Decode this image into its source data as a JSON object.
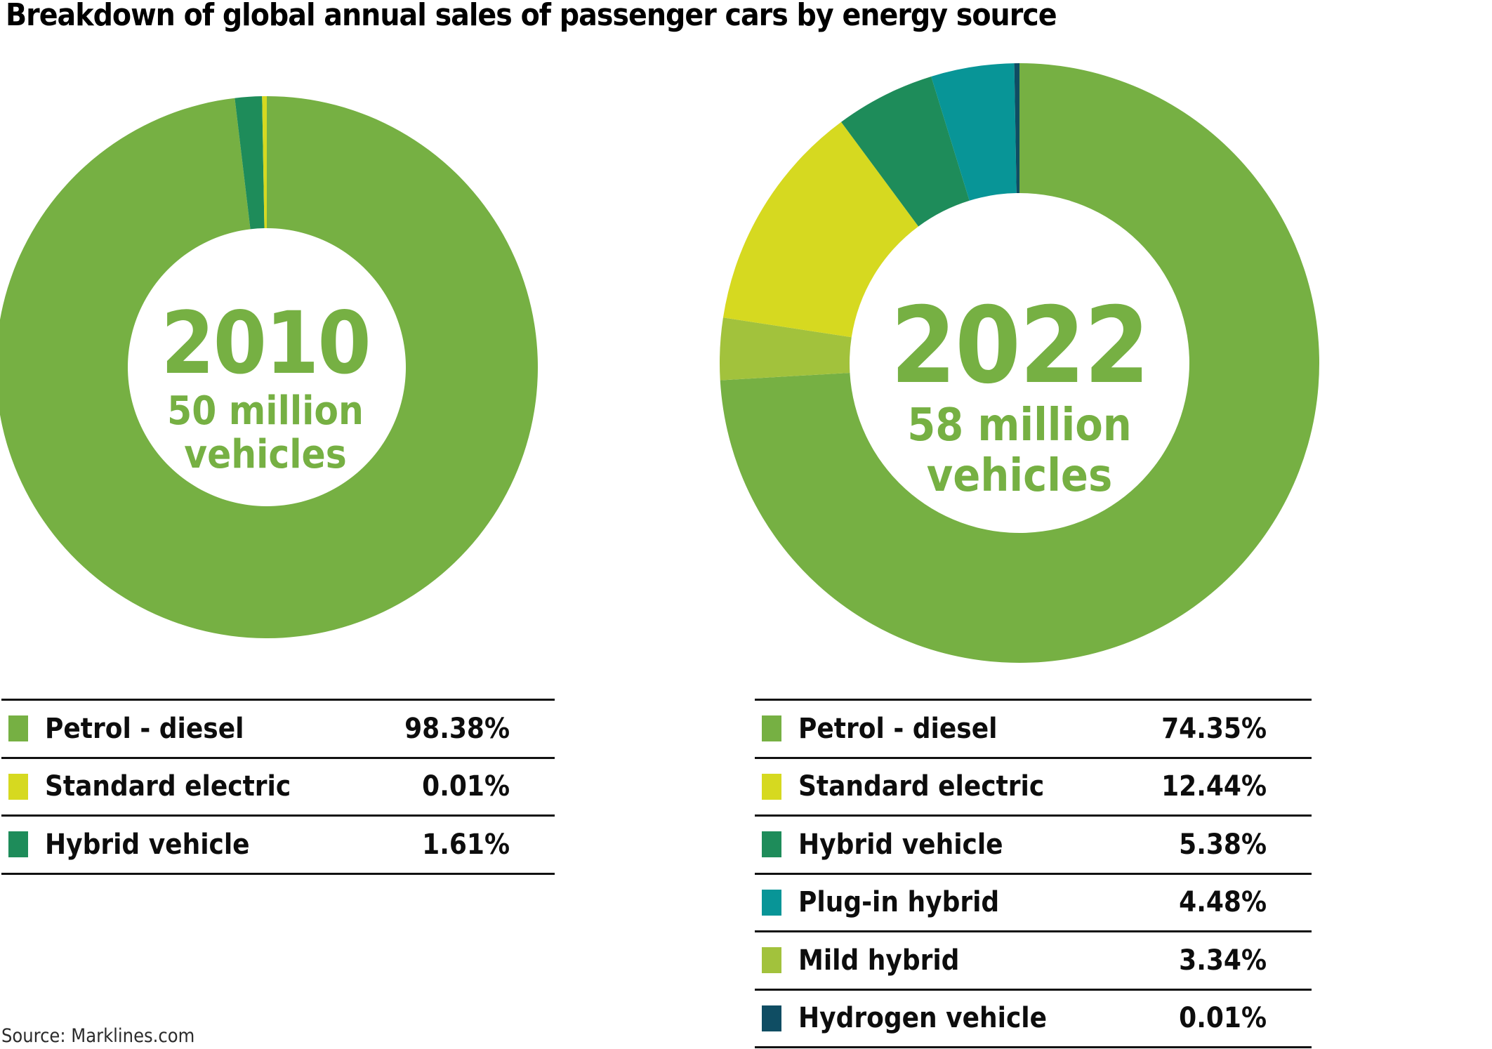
{
  "title": "Breakdown of global annual sales of passenger cars by energy source",
  "source": "Source: Marklines.com",
  "accent_color": "#76b043",
  "chart_data": [
    {
      "type": "pie",
      "subtype": "donut",
      "title": "2010",
      "center_label": {
        "year": "2010",
        "line1": "50 million",
        "line2": "vehicles"
      },
      "categories": [
        "Petrol - diesel",
        "Standard electric",
        "Hybrid vehicle"
      ],
      "values": [
        98.38,
        0.01,
        1.61
      ],
      "pct_labels": [
        "98.38%",
        "0.01%",
        "1.61%"
      ],
      "colors": [
        "#76b043",
        "#d6d920",
        "#1e8c5a"
      ],
      "draw_order": [
        0,
        2,
        1
      ],
      "start_angle_deg": 0,
      "direction": "clockwise",
      "legend_position": "below"
    },
    {
      "type": "pie",
      "subtype": "donut",
      "title": "2022",
      "center_label": {
        "year": "2022",
        "line1": "58 million",
        "line2": "vehicles"
      },
      "categories": [
        "Petrol - diesel",
        "Standard electric",
        "Hybrid vehicle",
        "Plug-in hybrid",
        "Mild hybrid",
        "Hydrogen vehicle"
      ],
      "values": [
        74.35,
        12.44,
        5.38,
        4.48,
        3.34,
        0.01
      ],
      "pct_labels": [
        "74.35%",
        "12.44%",
        "5.38%",
        "4.48%",
        "3.34%",
        "0.01%"
      ],
      "colors": [
        "#76b043",
        "#d6d920",
        "#1e8c5a",
        "#089597",
        "#a2c23c",
        "#0f4d63"
      ],
      "draw_order": [
        0,
        4,
        1,
        2,
        3,
        5
      ],
      "start_angle_deg": 0,
      "direction": "clockwise",
      "legend_position": "below"
    }
  ]
}
